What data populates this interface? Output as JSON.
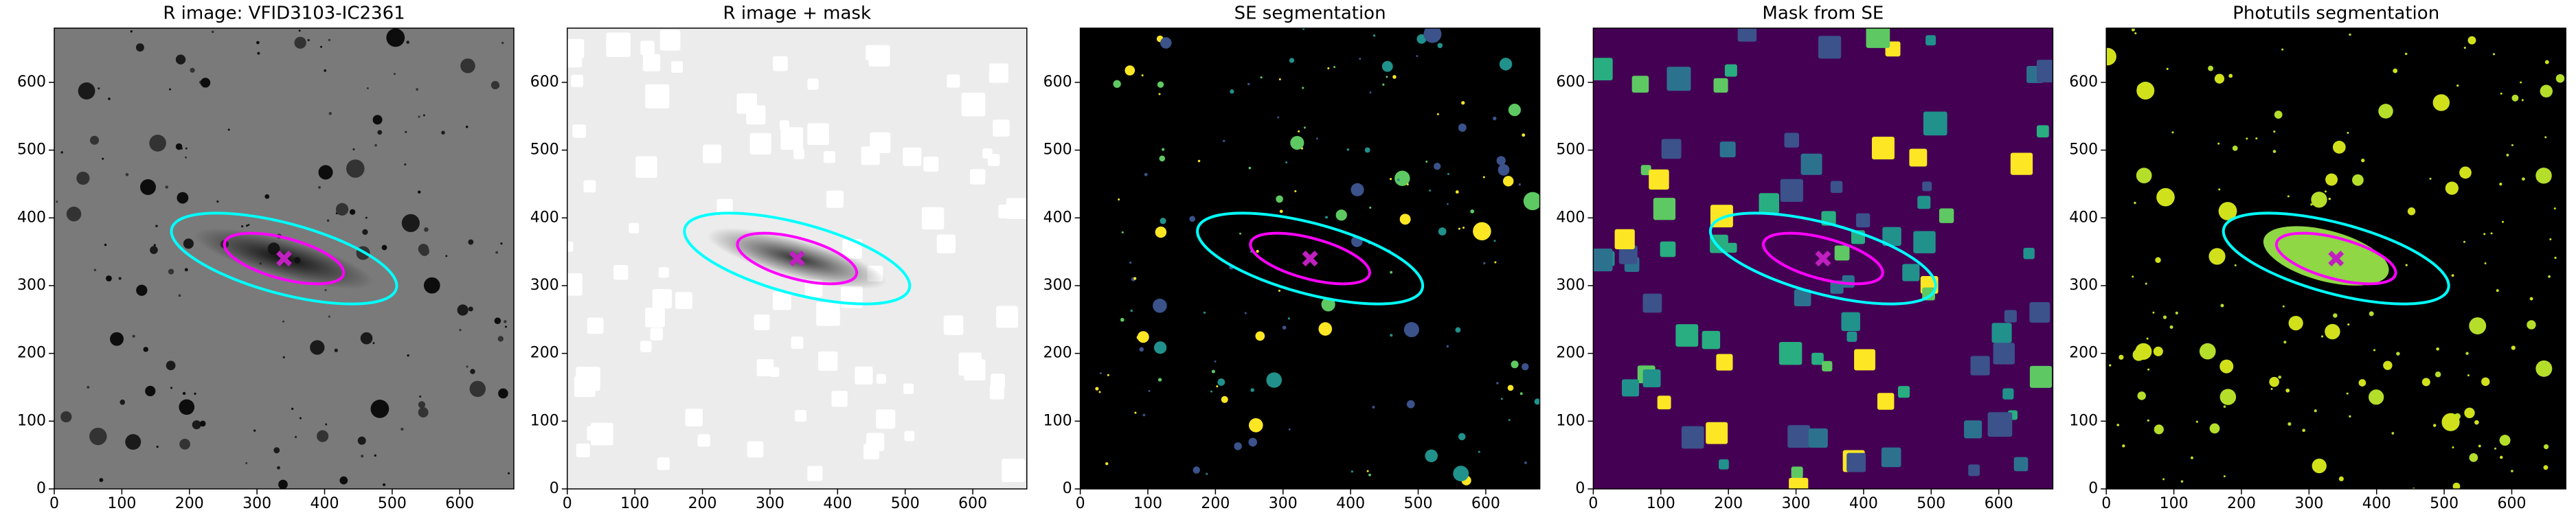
{
  "chart_data": [
    {
      "type": "image",
      "title": "R image: VFID3103-IC2361",
      "background": "#7a7a7a",
      "blob_colors": [
        "#1a1a1a",
        "#333333",
        "#0d0d0d"
      ],
      "blob_shape": "circle",
      "galaxy_color": "#111111",
      "xlim": [
        0,
        680
      ],
      "ylim": [
        0,
        680
      ],
      "xticks": [
        0,
        100,
        200,
        300,
        400,
        500,
        600
      ],
      "yticks": [
        0,
        100,
        200,
        300,
        400,
        500,
        600
      ],
      "ellipses": [
        {
          "x": 340,
          "y": 340,
          "a": 172,
          "b": 52,
          "angle": -15,
          "color": "#00ffff"
        },
        {
          "x": 340,
          "y": 340,
          "a": 91,
          "b": 30,
          "angle": -15,
          "color": "#ff00ff"
        }
      ],
      "center": {
        "x": 340,
        "y": 340,
        "color": "#c020c0"
      }
    },
    {
      "type": "image",
      "title": "R image + mask",
      "background": "#ececec",
      "blob_colors": [
        "#ffffff"
      ],
      "blob_shape": "square",
      "galaxy_color": "#333333",
      "xlim": [
        0,
        680
      ],
      "ylim": [
        0,
        680
      ],
      "xticks": [
        0,
        100,
        200,
        300,
        400,
        500,
        600
      ],
      "yticks": [
        0,
        100,
        200,
        300,
        400,
        500,
        600
      ],
      "ellipses": [
        {
          "x": 340,
          "y": 340,
          "a": 172,
          "b": 52,
          "angle": -15,
          "color": "#00ffff"
        },
        {
          "x": 340,
          "y": 340,
          "a": 91,
          "b": 30,
          "angle": -15,
          "color": "#ff00ff"
        }
      ],
      "center": {
        "x": 340,
        "y": 340,
        "color": "#c020c0"
      }
    },
    {
      "type": "image",
      "title": "SE segmentation",
      "background": "#000000",
      "blob_colors": [
        "#fde725",
        "#5ec962",
        "#21918c",
        "#3b528b"
      ],
      "blob_shape": "circle",
      "xlim": [
        0,
        680
      ],
      "ylim": [
        0,
        680
      ],
      "xticks": [
        0,
        100,
        200,
        300,
        400,
        500,
        600
      ],
      "yticks": [
        0,
        100,
        200,
        300,
        400,
        500,
        600
      ],
      "ellipses": [
        {
          "x": 340,
          "y": 340,
          "a": 172,
          "b": 52,
          "angle": -15,
          "color": "#00ffff"
        },
        {
          "x": 340,
          "y": 340,
          "a": 91,
          "b": 30,
          "angle": -15,
          "color": "#ff00ff"
        }
      ],
      "center": {
        "x": 340,
        "y": 340,
        "color": "#c020c0"
      }
    },
    {
      "type": "image",
      "title": "Mask from SE",
      "background": "#440154",
      "blob_colors": [
        "#3b528b",
        "#2c728e",
        "#21918c",
        "#28ae80",
        "#5ec962",
        "#fde725"
      ],
      "blob_shape": "square",
      "xlim": [
        0,
        680
      ],
      "ylim": [
        0,
        680
      ],
      "xticks": [
        0,
        100,
        200,
        300,
        400,
        500,
        600
      ],
      "yticks": [
        0,
        100,
        200,
        300,
        400,
        500,
        600
      ],
      "ellipses": [
        {
          "x": 340,
          "y": 340,
          "a": 172,
          "b": 52,
          "angle": -15,
          "color": "#00ffff"
        },
        {
          "x": 340,
          "y": 340,
          "a": 91,
          "b": 30,
          "angle": -15,
          "color": "#ff00ff"
        }
      ],
      "center": {
        "x": 340,
        "y": 340,
        "color": "#c020c0"
      }
    },
    {
      "type": "image",
      "title": "Photutils segmentation",
      "background": "#000000",
      "blob_colors": [
        "#b5de2b",
        "#d0e11c"
      ],
      "blob_shape": "circle",
      "segment_color": "#8fd744",
      "xlim": [
        0,
        680
      ],
      "ylim": [
        0,
        680
      ],
      "xticks": [
        0,
        100,
        200,
        300,
        400,
        500,
        600
      ],
      "yticks": [
        0,
        100,
        200,
        300,
        400,
        500,
        600
      ],
      "ellipses": [
        {
          "x": 340,
          "y": 340,
          "a": 172,
          "b": 52,
          "angle": -15,
          "color": "#00ffff"
        },
        {
          "x": 340,
          "y": 340,
          "a": 91,
          "b": 30,
          "angle": -15,
          "color": "#ff00ff"
        }
      ],
      "center": {
        "x": 340,
        "y": 340,
        "color": "#c020c0"
      }
    }
  ]
}
